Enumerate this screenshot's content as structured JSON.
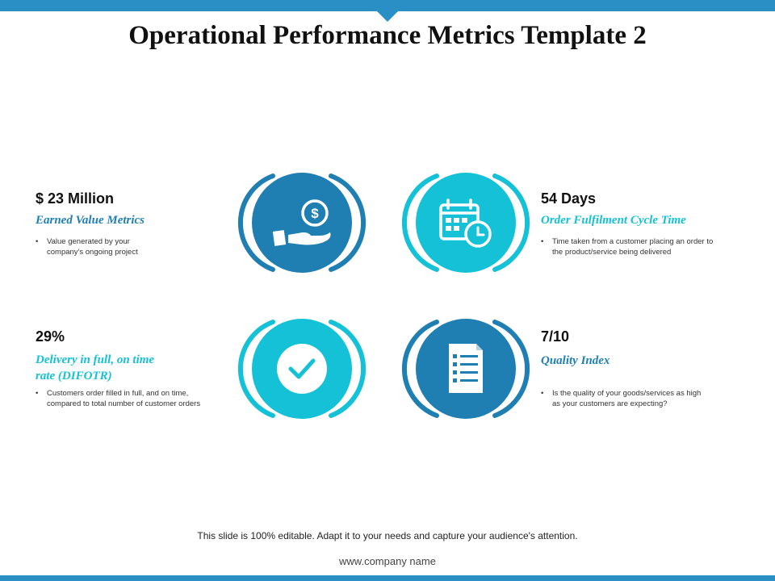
{
  "title": "Operational Performance Metrics Template 2",
  "metrics": [
    {
      "value": "$ 23 Million",
      "name": "Earned Value Metrics",
      "description_lines": [
        "Value generated by your",
        "company's ongoing project"
      ],
      "icon": "money-hand-icon",
      "color": "#1f7fb3"
    },
    {
      "value": "54 Days",
      "name": "Order Fulfilment Cycle Time",
      "description_lines": [
        "Time taken from a customer placing an order to",
        "the product/service being delivered"
      ],
      "icon": "calendar-clock-icon",
      "color": "#14c1d6"
    },
    {
      "value": "29%",
      "name_lines": [
        "Delivery in full, on time",
        "rate (DIFOTR)"
      ],
      "description_lines": [
        "Customers order filled in full, and on time,",
        "compared to total number  of customer orders"
      ],
      "icon": "checkmark-icon",
      "color": "#14c1d6"
    },
    {
      "value": "7/10",
      "name": "Quality Index",
      "description_lines": [
        "Is the quality of your goods/services as high",
        "as your customers are expecting?"
      ],
      "icon": "checklist-document-icon",
      "color": "#1f7fb3"
    }
  ],
  "bullet": "•",
  "footer": {
    "note": "This slide is 100% editable. Adapt it to your needs and capture your audience's attention.",
    "url": "www.company  name"
  },
  "colors": {
    "accent_dark": "#1f7fb3",
    "accent_light": "#14c1d6",
    "bar": "#2a8fc4"
  }
}
